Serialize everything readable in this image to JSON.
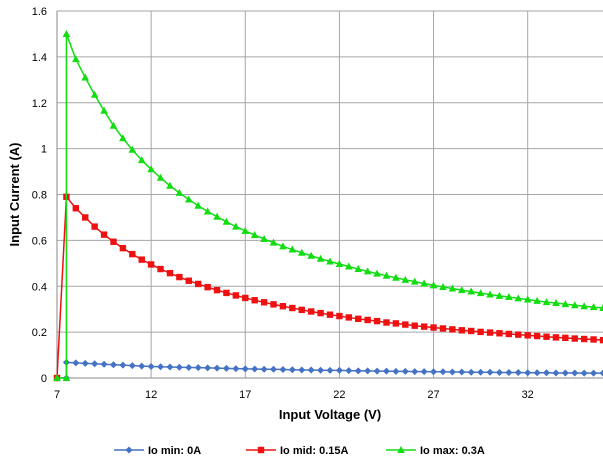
{
  "chart_data": {
    "type": "line",
    "title": "",
    "xlabel": "Input Voltage (V)",
    "ylabel": "Input Current (A)",
    "xlim": [
      7,
      36
    ],
    "ylim": [
      0,
      1.6
    ],
    "xticks": [
      7,
      12,
      17,
      22,
      27,
      32
    ],
    "yticks": [
      0,
      0.2,
      0.4,
      0.6,
      0.8,
      1,
      1.2,
      1.4,
      1.6
    ],
    "xtick_labels": [
      "7",
      "12",
      "17",
      "22",
      "27",
      "32"
    ],
    "ytick_labels": [
      "0",
      "0.2",
      "0.4",
      "0.6",
      "0.8",
      "1",
      "1.2",
      "1.4",
      "1.6"
    ],
    "grid": true,
    "legend_position": "bottom",
    "x": [
      7,
      7.5,
      8,
      8.5,
      9,
      9.5,
      10,
      10.5,
      11,
      11.5,
      12,
      12.5,
      13,
      13.5,
      14,
      14.5,
      15,
      15.5,
      16,
      16.5,
      17,
      17.5,
      18,
      18.5,
      19,
      19.5,
      20,
      20.5,
      21,
      21.5,
      22,
      22.5,
      23,
      23.5,
      24,
      24.5,
      25,
      25.5,
      26,
      26.5,
      27,
      27.5,
      28,
      28.5,
      29,
      29.5,
      30,
      30.5,
      31,
      31.5,
      32,
      32.5,
      33,
      33.5,
      34,
      34.5,
      35,
      35.5,
      36
    ],
    "series": [
      {
        "name": "Io min: 0A",
        "color": "#4472C4",
        "marker": "diamond",
        "points": [
          [
            7,
            0
          ],
          [
            7.5,
            0
          ],
          [
            7.5,
            0.068
          ],
          [
            8,
            0.066
          ],
          [
            8.5,
            0.064
          ],
          [
            9,
            0.062
          ],
          [
            9.5,
            0.06
          ],
          [
            10,
            0.058
          ],
          [
            10.5,
            0.056
          ],
          [
            11,
            0.054
          ],
          [
            11.5,
            0.052
          ],
          [
            12,
            0.05
          ],
          [
            12.5,
            0.049
          ],
          [
            13,
            0.048
          ],
          [
            13.5,
            0.047
          ],
          [
            14,
            0.046
          ],
          [
            14.5,
            0.045
          ],
          [
            15,
            0.044
          ],
          [
            15.5,
            0.043
          ],
          [
            16,
            0.042
          ],
          [
            16.5,
            0.041
          ],
          [
            17,
            0.04
          ],
          [
            17.5,
            0.039
          ],
          [
            18,
            0.038
          ],
          [
            18.5,
            0.038
          ],
          [
            19,
            0.037
          ],
          [
            19.5,
            0.036
          ],
          [
            20,
            0.035
          ],
          [
            20.5,
            0.035
          ],
          [
            21,
            0.034
          ],
          [
            21.5,
            0.033
          ],
          [
            22,
            0.033
          ],
          [
            22.5,
            0.032
          ],
          [
            23,
            0.031
          ],
          [
            23.5,
            0.031
          ],
          [
            24,
            0.03
          ],
          [
            24.5,
            0.03
          ],
          [
            25,
            0.029
          ],
          [
            25.5,
            0.029
          ],
          [
            26,
            0.028
          ],
          [
            26.5,
            0.028
          ],
          [
            27,
            0.027
          ],
          [
            27.5,
            0.027
          ],
          [
            28,
            0.026
          ],
          [
            28.5,
            0.026
          ],
          [
            29,
            0.025
          ],
          [
            29.5,
            0.025
          ],
          [
            30,
            0.025
          ],
          [
            30.5,
            0.024
          ],
          [
            31,
            0.024
          ],
          [
            31.5,
            0.024
          ],
          [
            32,
            0.023
          ],
          [
            32.5,
            0.023
          ],
          [
            33,
            0.023
          ],
          [
            33.5,
            0.022
          ],
          [
            34,
            0.022
          ],
          [
            34.5,
            0.022
          ],
          [
            35,
            0.021
          ],
          [
            35.5,
            0.021
          ],
          [
            36,
            0.021
          ]
        ]
      },
      {
        "name": "Io mid: 0.15A",
        "color": "#EE1111",
        "marker": "square",
        "points": [
          [
            7,
            0
          ],
          [
            7.5,
            0.79
          ],
          [
            8,
            0.74
          ],
          [
            8.5,
            0.7
          ],
          [
            9,
            0.66
          ],
          [
            9.5,
            0.625
          ],
          [
            10,
            0.594
          ],
          [
            10.5,
            0.566
          ],
          [
            11,
            0.54
          ],
          [
            11.5,
            0.516
          ],
          [
            12,
            0.495
          ],
          [
            12.5,
            0.475
          ],
          [
            13,
            0.457
          ],
          [
            13.5,
            0.44
          ],
          [
            14,
            0.424
          ],
          [
            14.5,
            0.41
          ],
          [
            15,
            0.396
          ],
          [
            15.5,
            0.383
          ],
          [
            16,
            0.371
          ],
          [
            16.5,
            0.36
          ],
          [
            17,
            0.349
          ],
          [
            17.5,
            0.339
          ],
          [
            18,
            0.33
          ],
          [
            18.5,
            0.321
          ],
          [
            19,
            0.313
          ],
          [
            19.5,
            0.305
          ],
          [
            20,
            0.297
          ],
          [
            20.5,
            0.29
          ],
          [
            21,
            0.283
          ],
          [
            21.5,
            0.276
          ],
          [
            22,
            0.27
          ],
          [
            22.5,
            0.264
          ],
          [
            23,
            0.258
          ],
          [
            23.5,
            0.253
          ],
          [
            24,
            0.248
          ],
          [
            24.5,
            0.242
          ],
          [
            25,
            0.238
          ],
          [
            25.5,
            0.233
          ],
          [
            26,
            0.228
          ],
          [
            26.5,
            0.224
          ],
          [
            27,
            0.22
          ],
          [
            27.5,
            0.216
          ],
          [
            28,
            0.212
          ],
          [
            28.5,
            0.208
          ],
          [
            29,
            0.205
          ],
          [
            29.5,
            0.201
          ],
          [
            30,
            0.198
          ],
          [
            30.5,
            0.195
          ],
          [
            31,
            0.192
          ],
          [
            31.5,
            0.189
          ],
          [
            32,
            0.186
          ],
          [
            32.5,
            0.183
          ],
          [
            33,
            0.18
          ],
          [
            33.5,
            0.177
          ],
          [
            34,
            0.175
          ],
          [
            34.5,
            0.172
          ],
          [
            35,
            0.17
          ],
          [
            35.5,
            0.168
          ],
          [
            36,
            0.165
          ]
        ]
      },
      {
        "name": "Io max: 0.3A",
        "color": "#11DD11",
        "marker": "triangle",
        "points": [
          [
            7,
            0
          ],
          [
            7.5,
            0
          ],
          [
            7.5,
            1.5
          ],
          [
            8,
            1.39
          ],
          [
            8.5,
            1.31
          ],
          [
            9,
            1.235
          ],
          [
            9.5,
            1.165
          ],
          [
            10,
            1.1
          ],
          [
            10.5,
            1.045
          ],
          [
            11,
            0.995
          ],
          [
            11.5,
            0.95
          ],
          [
            12,
            0.91
          ],
          [
            12.5,
            0.873
          ],
          [
            13,
            0.838
          ],
          [
            13.5,
            0.807
          ],
          [
            14,
            0.778
          ],
          [
            14.5,
            0.751
          ],
          [
            15,
            0.726
          ],
          [
            15.5,
            0.703
          ],
          [
            16,
            0.681
          ],
          [
            16.5,
            0.66
          ],
          [
            17,
            0.641
          ],
          [
            17.5,
            0.623
          ],
          [
            18,
            0.606
          ],
          [
            18.5,
            0.59
          ],
          [
            19,
            0.574
          ],
          [
            19.5,
            0.56
          ],
          [
            20,
            0.546
          ],
          [
            20.5,
            0.533
          ],
          [
            21,
            0.52
          ],
          [
            21.5,
            0.508
          ],
          [
            22,
            0.497
          ],
          [
            22.5,
            0.486
          ],
          [
            23,
            0.475
          ],
          [
            23.5,
            0.465
          ],
          [
            24,
            0.455
          ],
          [
            24.5,
            0.446
          ],
          [
            25,
            0.437
          ],
          [
            25.5,
            0.428
          ],
          [
            26,
            0.42
          ],
          [
            26.5,
            0.412
          ],
          [
            27,
            0.404
          ],
          [
            27.5,
            0.397
          ],
          [
            28,
            0.39
          ],
          [
            28.5,
            0.383
          ],
          [
            29,
            0.377
          ],
          [
            29.5,
            0.37
          ],
          [
            30,
            0.364
          ],
          [
            30.5,
            0.358
          ],
          [
            31,
            0.353
          ],
          [
            31.5,
            0.347
          ],
          [
            32,
            0.342
          ],
          [
            32.5,
            0.336
          ],
          [
            33,
            0.331
          ],
          [
            33.5,
            0.327
          ],
          [
            34,
            0.322
          ],
          [
            34.5,
            0.317
          ],
          [
            35,
            0.313
          ],
          [
            35.5,
            0.309
          ],
          [
            36,
            0.305
          ]
        ]
      }
    ]
  }
}
